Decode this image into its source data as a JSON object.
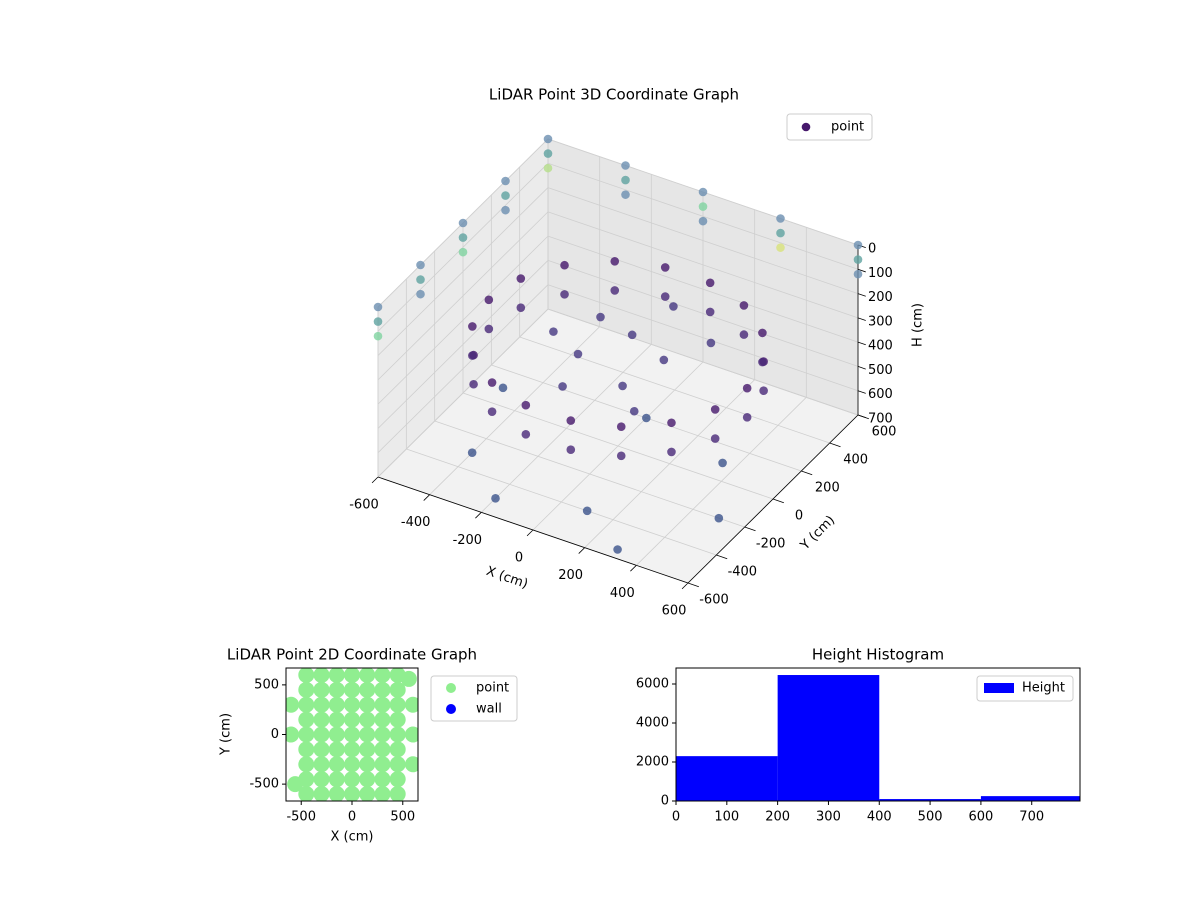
{
  "chart_data": [
    {
      "type": "scatter3d",
      "title": "LiDAR Point 3D Coordinate Graph",
      "xlabel": "X (cm)",
      "ylabel": "Y (cm)",
      "zlabel": "H (cm)",
      "xlim": [
        -600,
        600
      ],
      "ylim": [
        -600,
        600
      ],
      "zlim": [
        0,
        700
      ],
      "z_inverted": true,
      "xticks": [
        -600,
        -400,
        -200,
        0,
        200,
        400,
        600
      ],
      "yticks": [
        -600,
        -400,
        -200,
        0,
        200,
        400,
        600
      ],
      "zticks": [
        0,
        100,
        200,
        300,
        400,
        500,
        600,
        700
      ],
      "legend": "upper right",
      "grid": true,
      "series": [
        {
          "name": "point",
          "color": "#46186b",
          "x": [
            500,
            470,
            383,
            250,
            87,
            -87,
            -250,
            -383,
            -470,
            -500,
            -470,
            -383,
            -250,
            -87,
            87,
            250,
            383,
            470,
            500,
            470,
            383,
            250,
            87,
            -87,
            -250,
            -383,
            -470,
            -500,
            -470,
            -383,
            -250,
            -87,
            87,
            250,
            383,
            470,
            0,
            150,
            -150,
            100,
            -100,
            250,
            -250,
            50,
            200,
            -50,
            -600,
            -600,
            -600,
            -600,
            -600,
            -600,
            -600,
            -600,
            -600,
            -600,
            -600,
            -600,
            -600,
            -600,
            -600,
            -300,
            -300,
            -300,
            0,
            0,
            0,
            300,
            300,
            300,
            600,
            600,
            600,
            -400,
            -200,
            100,
            300,
            500,
            -500,
            0,
            350
          ],
          "y": [
            0,
            171,
            321,
            433,
            492,
            492,
            433,
            321,
            171,
            0,
            -171,
            -321,
            -433,
            -492,
            -492,
            -433,
            -321,
            -171,
            0,
            171,
            321,
            433,
            492,
            492,
            433,
            321,
            171,
            0,
            -171,
            -321,
            -433,
            -492,
            -492,
            -433,
            -321,
            -171,
            100,
            50,
            150,
            -150,
            -100,
            200,
            0,
            300,
            -250,
            -300,
            -600,
            -600,
            -600,
            -300,
            -300,
            -300,
            0,
            0,
            0,
            300,
            300,
            300,
            600,
            600,
            600,
            600,
            600,
            600,
            600,
            600,
            600,
            600,
            600,
            600,
            600,
            600,
            600,
            -300,
            -500,
            -400,
            -550,
            -200,
            100,
            200,
            100
          ],
          "z": [
            280,
            280,
            280,
            280,
            280,
            280,
            280,
            280,
            280,
            280,
            280,
            280,
            280,
            280,
            280,
            280,
            280,
            280,
            400,
            400,
            400,
            400,
            400,
            400,
            400,
            400,
            400,
            400,
            400,
            400,
            400,
            400,
            400,
            400,
            400,
            400,
            300,
            320,
            310,
            330,
            300,
            300,
            320,
            280,
            340,
            300,
            0,
            60,
            120,
            0,
            60,
            120,
            0,
            60,
            120,
            0,
            60,
            120,
            0,
            60,
            120,
            0,
            60,
            120,
            0,
            60,
            120,
            0,
            60,
            120,
            0,
            60,
            120,
            700,
            700,
            700,
            700,
            700,
            700,
            700,
            700
          ],
          "colors": [
            "#46186b",
            "#46186b",
            "#46186b",
            "#46186b",
            "#46186b",
            "#46186b",
            "#46186b",
            "#46186b",
            "#46186b",
            "#46186b",
            "#46186b",
            "#46186b",
            "#46186b",
            "#46186b",
            "#46186b",
            "#46186b",
            "#46186b",
            "#46186b",
            "#482878",
            "#482878",
            "#482878",
            "#482878",
            "#482878",
            "#482878",
            "#482878",
            "#482878",
            "#482878",
            "#482878",
            "#482878",
            "#482878",
            "#482878",
            "#482878",
            "#482878",
            "#482878",
            "#482878",
            "#482878",
            "#453781",
            "#453781",
            "#453781",
            "#453781",
            "#453781",
            "#453781",
            "#453781",
            "#453781",
            "#453781",
            "#453781",
            "#6b8fb0",
            "#5fa2a0",
            "#7fd3a0",
            "#6b8fb0",
            "#5fa2a0",
            "#6b8fb0",
            "#6b8fb0",
            "#5fa2a0",
            "#7fd3a0",
            "#6b8fb0",
            "#5fa2a0",
            "#6b8fb0",
            "#6b8fb0",
            "#5fa2a0",
            "#b5de8a",
            "#6b8fb0",
            "#5fa2a0",
            "#6b8fb0",
            "#6b8fb0",
            "#7fd3a0",
            "#6b8fb0",
            "#6b8fb0",
            "#5fa2a0",
            "#d8e27a",
            "#6b8fb0",
            "#5fa2a0",
            "#6b8fb0",
            "#3b528b",
            "#3b528b",
            "#3b528b",
            "#3b528b",
            "#3b528b",
            "#3b528b",
            "#3b528b",
            "#3b528b"
          ]
        }
      ]
    },
    {
      "type": "scatter",
      "title": "LiDAR Point 2D Coordinate Graph",
      "xlabel": "X (cm)",
      "ylabel": "Y (cm)",
      "xlim": [
        -650,
        650
      ],
      "ylim": [
        -670,
        670
      ],
      "xticks": [
        -500,
        0,
        500
      ],
      "yticks": [
        -500,
        0,
        500
      ],
      "legend": "outside right",
      "series": [
        {
          "name": "point",
          "color": "#90ee90",
          "x": [
            -450,
            -300,
            -150,
            0,
            150,
            300,
            450,
            -450,
            -300,
            -150,
            0,
            150,
            300,
            450,
            -450,
            -300,
            -150,
            0,
            150,
            300,
            450,
            -450,
            -300,
            -150,
            0,
            150,
            300,
            450,
            -450,
            -300,
            -150,
            0,
            150,
            300,
            450,
            -450,
            -300,
            -150,
            0,
            150,
            300,
            450,
            -450,
            -300,
            -150,
            0,
            150,
            300,
            450,
            -450,
            -300,
            -150,
            0,
            150,
            300,
            450,
            -450,
            -300,
            -150,
            0,
            150,
            300,
            450,
            -600,
            600,
            600,
            -560,
            560,
            600,
            -600
          ],
          "y": [
            600,
            600,
            600,
            600,
            600,
            600,
            600,
            450,
            450,
            450,
            450,
            450,
            450,
            450,
            300,
            300,
            300,
            300,
            300,
            300,
            300,
            150,
            150,
            150,
            150,
            150,
            150,
            150,
            0,
            0,
            0,
            0,
            0,
            0,
            0,
            -150,
            -150,
            -150,
            -150,
            -150,
            -150,
            -150,
            -300,
            -300,
            -300,
            -300,
            -300,
            -300,
            -300,
            -450,
            -450,
            -450,
            -450,
            -450,
            -450,
            -450,
            -600,
            -600,
            -600,
            -600,
            -600,
            -600,
            -600,
            0,
            0,
            300,
            -500,
            560,
            -300,
            300
          ]
        },
        {
          "name": "wall",
          "color": "#0000ff",
          "x": [],
          "y": []
        }
      ]
    },
    {
      "type": "histogram",
      "title": "Height Histogram",
      "bins": [
        0,
        200,
        400,
        600,
        795
      ],
      "counts": [
        2300,
        6460,
        100,
        250
      ],
      "xlim": [
        0,
        795
      ],
      "ylim": [
        0,
        6820
      ],
      "xticks": [
        0,
        100,
        200,
        300,
        400,
        500,
        600,
        700
      ],
      "yticks": [
        0,
        2000,
        4000,
        6000
      ],
      "series_name": "Height",
      "color": "#0000ff",
      "legend": "upper right"
    }
  ]
}
